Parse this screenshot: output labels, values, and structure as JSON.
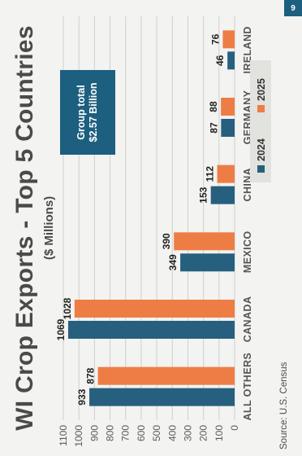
{
  "chart_data": {
    "type": "bar",
    "title": "WI Crop Exports - Top 5 Countries",
    "subtitle": "($ Millions)",
    "categories": [
      "ALL OTHERS",
      "CANADA",
      "MEXICO",
      "CHINA",
      "GERMANY",
      "IRELAND"
    ],
    "series": [
      {
        "name": "2024",
        "values": [
          933,
          1069,
          349,
          153,
          87,
          46
        ],
        "color": "#27607e"
      },
      {
        "name": "2025",
        "values": [
          878,
          1028,
          390,
          112,
          88,
          76
        ],
        "color": "#ed7d45"
      }
    ],
    "ylim": [
      0,
      1100
    ],
    "yticks": [
      0,
      100,
      200,
      300,
      400,
      500,
      600,
      700,
      800,
      900,
      1000,
      1100
    ],
    "grid": true,
    "legend_position": "bottom-right",
    "annotation": {
      "line1": "Group total",
      "line2": "$2.57 Billion"
    }
  },
  "source": "Source: U.S. Census",
  "page_number": "9"
}
